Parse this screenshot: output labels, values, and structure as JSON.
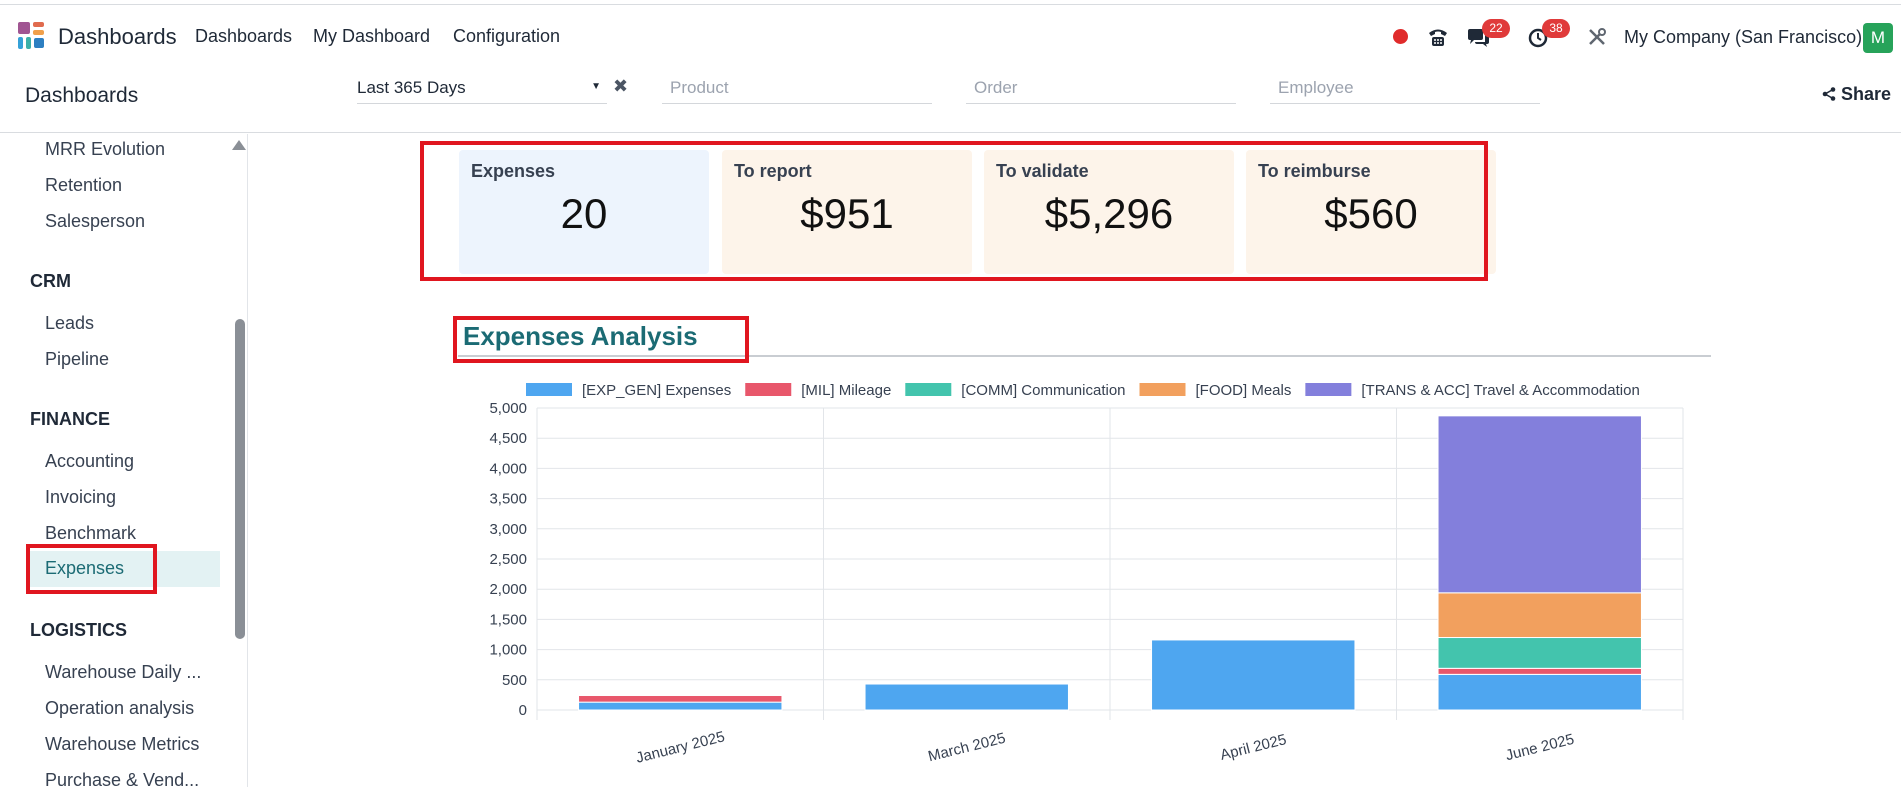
{
  "topbar": {
    "app_name": "Dashboards",
    "menu": [
      "Dashboards",
      "My Dashboard",
      "Configuration"
    ],
    "phone_icon": "phone-icon",
    "chat_badge": "22",
    "activity_badge": "38",
    "company": "My Company (San Francisco)",
    "avatar_letter": "M"
  },
  "control": {
    "title": "Dashboards",
    "date_filter": "Last 365 Days",
    "product_placeholder": "Product",
    "order_placeholder": "Order",
    "employee_placeholder": "Employee",
    "share_label": "Share"
  },
  "sidebar": {
    "top_items": [
      "MRR Evolution",
      "Retention",
      "Salesperson"
    ],
    "crm_header": "CRM",
    "crm_items": [
      "Leads",
      "Pipeline"
    ],
    "finance_header": "FINANCE",
    "finance_items": [
      "Accounting",
      "Invoicing",
      "Benchmark",
      "Expenses"
    ],
    "logistics_header": "LOGISTICS",
    "logistics_items": [
      "Warehouse Daily ...",
      "Operation analysis",
      "Warehouse Metrics",
      "Purchase & Vend..."
    ]
  },
  "kpis": [
    {
      "label": "Expenses",
      "value": "20",
      "bg": "#edf4fd"
    },
    {
      "label": "To report",
      "value": "$951",
      "bg": "#fdf4ea"
    },
    {
      "label": "To validate",
      "value": "$5,296",
      "bg": "#fdf4ea"
    },
    {
      "label": "To reimburse",
      "value": "$560",
      "bg": "#fdf4ea"
    }
  ],
  "section": {
    "title": "Expenses Analysis"
  },
  "chart_data": {
    "type": "bar",
    "stacked": true,
    "categories": [
      "January 2025",
      "March 2025",
      "April 2025",
      "June 2025"
    ],
    "series": [
      {
        "name": "[EXP_GEN] Expenses",
        "color": "#4ea6f0",
        "values": [
          130,
          430,
          1160,
          590
        ]
      },
      {
        "name": "[MIL] Mileage",
        "color": "#e8576b",
        "values": [
          110,
          0,
          0,
          100
        ]
      },
      {
        "name": "[COMM] Communication",
        "color": "#43c4ad",
        "values": [
          0,
          0,
          0,
          510
        ]
      },
      {
        "name": "[FOOD] Meals",
        "color": "#f2a05e",
        "values": [
          0,
          0,
          0,
          740
        ]
      },
      {
        "name": "[TRANS & ACC] Travel & Accommodation",
        "color": "#837fdc",
        "values": [
          0,
          0,
          0,
          2930
        ]
      }
    ],
    "ylim": [
      0,
      5000
    ],
    "yticks": [
      "0",
      "500",
      "1,000",
      "1,500",
      "2,000",
      "2,500",
      "3,000",
      "3,500",
      "4,000",
      "4,500",
      "5,000"
    ],
    "legend_position": "top",
    "grid": true
  }
}
